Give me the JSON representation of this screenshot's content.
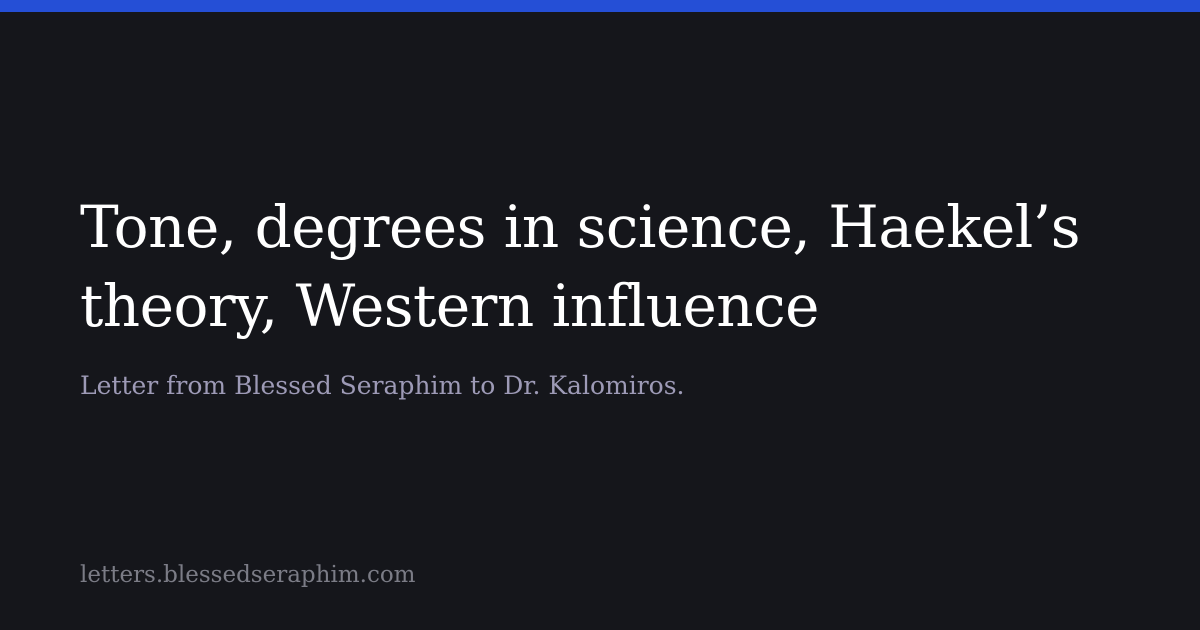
{
  "colors": {
    "background": "#15161b",
    "accent_bar": "#254fd6",
    "title": "#ffffff",
    "subtitle": "#9d9ab6",
    "site": "#7b7c86"
  },
  "card": {
    "title": "Tone, degrees in science, Haekel’s theory, Western influence",
    "subtitle": "Letter from Blessed Seraphim to Dr. Kalomiros.",
    "site": "letters.blessedseraphim.com"
  }
}
